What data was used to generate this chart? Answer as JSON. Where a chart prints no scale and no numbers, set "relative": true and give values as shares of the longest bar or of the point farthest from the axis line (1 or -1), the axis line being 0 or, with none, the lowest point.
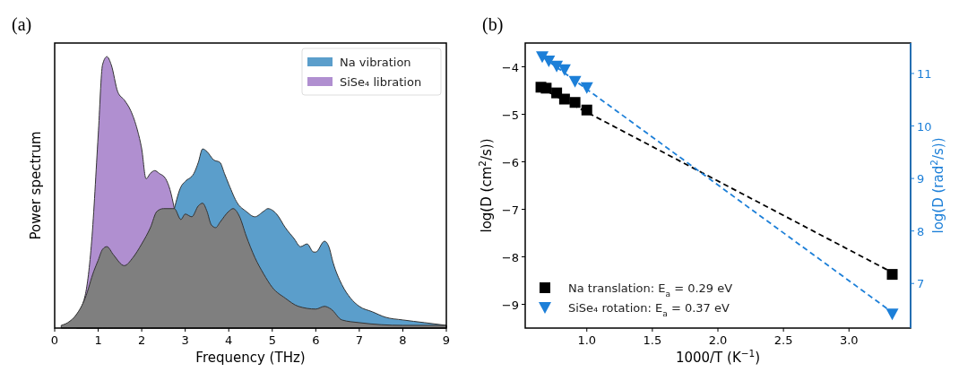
{
  "chart_data": [
    {
      "type": "area",
      "title": "(a)",
      "xlabel": "Frequency (THz)",
      "ylabel": "Power spectrum",
      "relative": true,
      "xlim": [
        0,
        9
      ],
      "xticks": [
        0,
        1,
        2,
        3,
        4,
        5,
        6,
        7,
        8,
        9
      ],
      "legend": "top right",
      "series": [
        {
          "name": "Na vibration",
          "color": "#5b9ecb",
          "x": [
            2.75,
            2.9,
            3.0,
            3.2,
            3.3,
            3.4,
            3.5,
            3.65,
            3.8,
            3.9,
            4.0,
            4.2,
            4.4,
            4.6,
            4.8,
            4.9,
            5.1,
            5.3,
            5.5,
            5.65,
            5.8,
            5.95,
            6.0,
            6.2,
            6.3,
            6.4,
            6.6,
            6.8,
            7.0,
            7.3,
            7.6,
            8.0,
            8.5,
            9.0
          ],
          "values": [
            0.44,
            0.52,
            0.54,
            0.57,
            0.61,
            0.66,
            0.65,
            0.62,
            0.61,
            0.57,
            0.53,
            0.46,
            0.43,
            0.41,
            0.43,
            0.44,
            0.42,
            0.37,
            0.33,
            0.3,
            0.31,
            0.28,
            0.28,
            0.32,
            0.3,
            0.24,
            0.16,
            0.11,
            0.08,
            0.06,
            0.04,
            0.03,
            0.02,
            0.01
          ]
        },
        {
          "name": "SiSe₄ libration",
          "color": "#b08fd0",
          "x": [
            0.5,
            0.7,
            0.85,
            1.0,
            1.1,
            1.2,
            1.3,
            1.45,
            1.6,
            1.75,
            1.9,
            2.0,
            2.1,
            2.2,
            2.3,
            2.4,
            2.55,
            2.65,
            2.75
          ],
          "values": [
            0.05,
            0.12,
            0.32,
            0.71,
            0.97,
            1.0,
            0.97,
            0.87,
            0.84,
            0.8,
            0.73,
            0.66,
            0.55,
            0.57,
            0.58,
            0.57,
            0.55,
            0.51,
            0.44
          ]
        },
        {
          "color": "#7f7f7f",
          "x": [
            0.15,
            0.3,
            0.5,
            0.7,
            0.9,
            1.0,
            1.1,
            1.2,
            1.35,
            1.6,
            1.8,
            2.0,
            2.2,
            2.35,
            2.5,
            2.7,
            2.75,
            2.9,
            3.0,
            3.15,
            3.3,
            3.4,
            3.5,
            3.6,
            3.7,
            3.8,
            4.0,
            4.1,
            4.25,
            4.4,
            4.6,
            4.8,
            5.0,
            5.3,
            5.6,
            6.0,
            6.2,
            6.35,
            6.6,
            7.0,
            8.0,
            9.0
          ],
          "values": [
            0.01,
            0.02,
            0.05,
            0.11,
            0.21,
            0.25,
            0.29,
            0.3,
            0.27,
            0.23,
            0.26,
            0.31,
            0.37,
            0.43,
            0.44,
            0.44,
            0.44,
            0.4,
            0.42,
            0.41,
            0.45,
            0.46,
            0.43,
            0.38,
            0.37,
            0.39,
            0.43,
            0.44,
            0.41,
            0.34,
            0.26,
            0.2,
            0.15,
            0.11,
            0.08,
            0.07,
            0.08,
            0.07,
            0.03,
            0.02,
            0.01,
            0.01
          ]
        }
      ]
    },
    {
      "type": "scatter",
      "title": "(b)",
      "xlabel": "1000/T (K$^{−1}$)",
      "ylabel": "log(D (cm$^{2}$/s))",
      "y2label": "log(D (rad$^{2}$/s))",
      "xlim": [
        0.53,
        3.47
      ],
      "xticks": [
        {
          "value": 1.0,
          "label": "1.0"
        },
        1.5,
        {
          "value": 2.0,
          "label": "2.0"
        },
        2.5,
        {
          "value": 3.0,
          "label": "3.0"
        }
      ],
      "ylim": [
        -9.5,
        -3.5
      ],
      "yticks": [
        {
          "value": -9,
          "label": "−9"
        },
        {
          "value": -8,
          "label": "−8"
        },
        {
          "value": -7,
          "label": "−7"
        },
        {
          "value": -6,
          "label": "−6"
        },
        {
          "value": -5,
          "label": "−5"
        },
        {
          "value": -4,
          "label": "−4"
        }
      ],
      "y2lim": [
        6.15,
        11.58
      ],
      "y2ticks": [
        7,
        8,
        9,
        10,
        11
      ],
      "legend": "bottom left",
      "series": [
        {
          "type": "line",
          "color": "#000000",
          "line_style": "dashed",
          "x": [
            0.65,
            3.33
          ],
          "values": [
            -4.45,
            -8.33
          ]
        },
        {
          "type": "line",
          "color": "#1c7fd8",
          "line_style": "dashed",
          "axis": "y2",
          "x": [
            0.66,
            3.33
          ],
          "values": [
            11.32,
            6.45
          ]
        },
        {
          "name": "Na translation: E$_{a}$ = 0.29 eV",
          "color": "#000000",
          "marker": "square",
          "x": [
            0.65,
            0.69,
            0.77,
            0.83,
            0.91,
            1.0,
            3.33
          ],
          "values": [
            -4.43,
            -4.45,
            -4.55,
            -4.68,
            -4.75,
            -4.91,
            -8.37
          ]
        },
        {
          "name": "SiSe₄ rotation: E$_{a}$ = 0.37 eV",
          "color": "#1c7fd8",
          "marker": "triangle",
          "axis": "y2",
          "x": [
            0.66,
            0.71,
            0.77,
            0.83,
            0.91,
            1.0,
            3.33
          ],
          "values": [
            11.32,
            11.24,
            11.14,
            11.07,
            10.85,
            10.73,
            6.42
          ]
        }
      ]
    }
  ]
}
